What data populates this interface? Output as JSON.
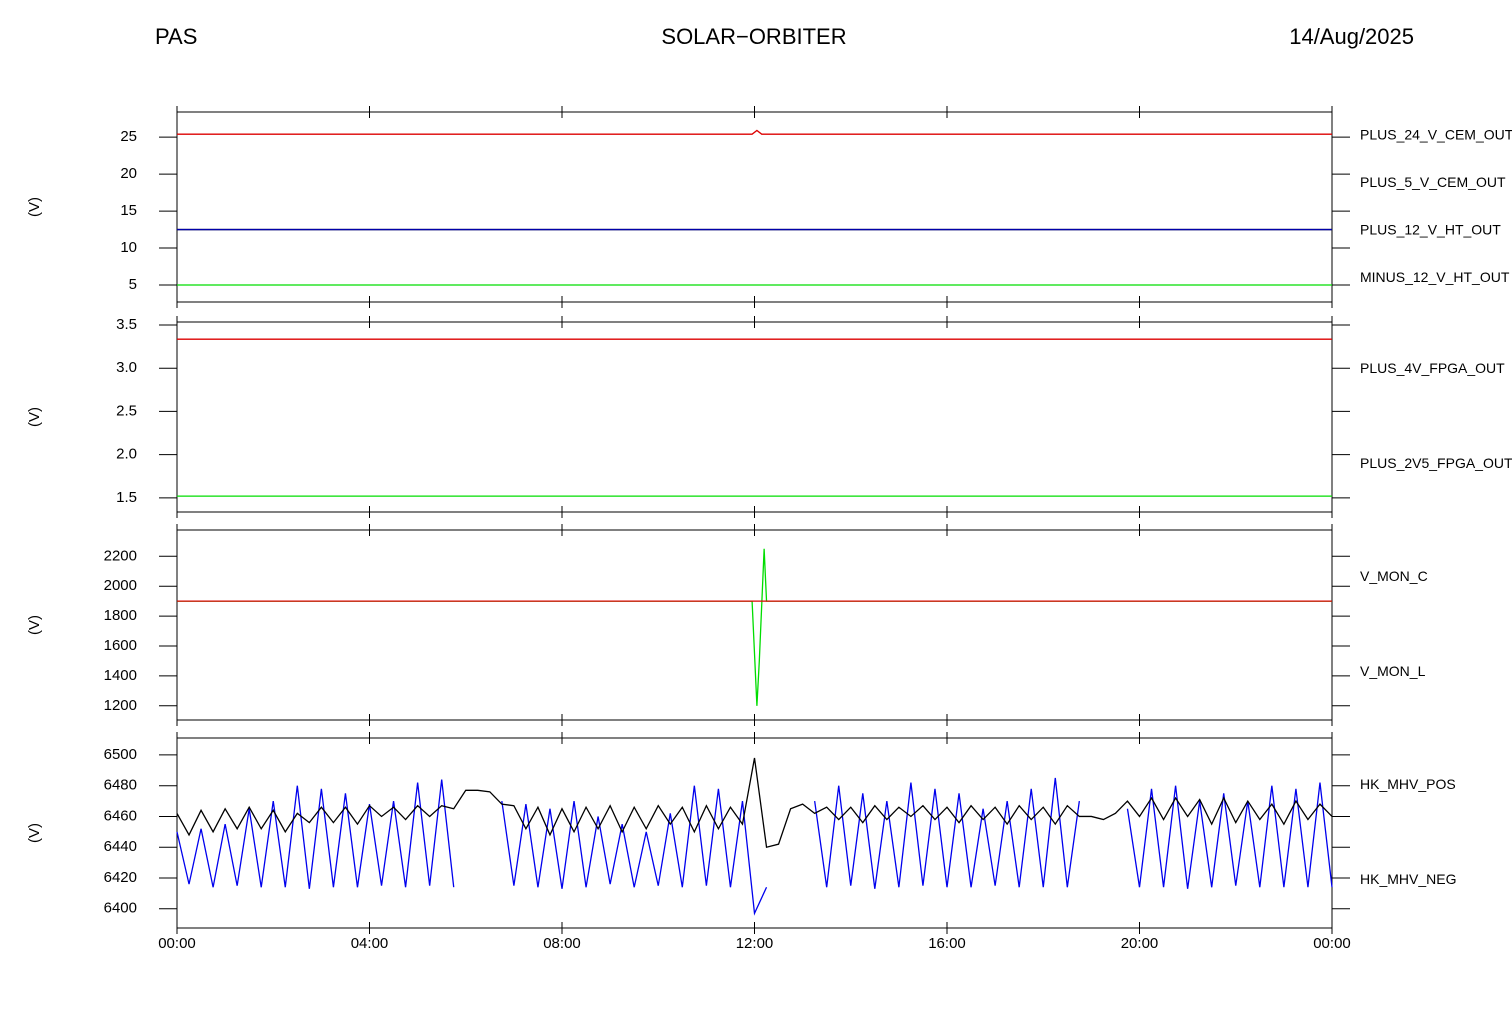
{
  "header": {
    "left": "PAS",
    "center": "SOLAR−ORBITER",
    "right": "14/Aug/2025"
  },
  "chart_data": [
    {
      "type": "line",
      "ylabel": "(V)",
      "xlim": [
        0,
        24
      ],
      "ylim": [
        2.7,
        28.4
      ],
      "yticks": [
        5,
        10,
        15,
        20,
        25
      ],
      "x": [
        0,
        11.95,
        12.05,
        12.15,
        12.3,
        24
      ],
      "series": [
        {
          "name": "PLUS_24_V_CEM_OUT",
          "color": "#dd0000",
          "values": [
            25.4,
            25.4,
            25.9,
            25.4,
            25.4,
            25.4
          ]
        },
        {
          "name": "PLUS_5_V_CEM_OUT",
          "color": "#00dd00",
          "values": [
            5.0,
            5.0,
            5.0,
            5.0,
            5.0,
            5.0
          ]
        },
        {
          "name": "PLUS_12_V_HT_OUT",
          "color": "#0000aa",
          "values": [
            12.5,
            12.5,
            12.5,
            12.5,
            12.5,
            12.5
          ]
        },
        {
          "name": "MINUS_12_V_HT_OUT",
          "color": "#000000",
          "values": [
            12.5,
            12.5,
            12.5,
            12.5,
            12.5,
            12.5
          ]
        }
      ]
    },
    {
      "type": "line",
      "ylabel": "(V)",
      "xlim": [
        0,
        24
      ],
      "ylim": [
        1.336,
        3.535
      ],
      "yticks": [
        1.5,
        {
          "value": 2,
          "label": "2.0"
        },
        2.5,
        {
          "value": 3,
          "label": "3.0"
        },
        3.5
      ],
      "x": [
        0,
        24
      ],
      "series": [
        {
          "name": "PLUS_4V_FPGA_OUT",
          "color": "#dd0000",
          "values": [
            3.336,
            3.336
          ]
        },
        {
          "name": "PLUS_2V5_FPGA_OUT",
          "color": "#00dd00",
          "values": [
            1.52,
            1.52
          ]
        }
      ]
    },
    {
      "type": "line",
      "ylabel": "(V)",
      "xlim": [
        0,
        24
      ],
      "ylim": [
        1105,
        2376
      ],
      "yticks": [
        1200,
        1400,
        1600,
        1800,
        2000,
        2200
      ],
      "x": [
        0,
        11.95,
        12.05,
        12.1,
        12.2,
        12.25,
        24
      ],
      "series": [
        {
          "name": "V_MON_C",
          "color": "#dd0000",
          "values": [
            1900,
            1900,
            1900,
            1900,
            1900,
            1900,
            1900
          ]
        },
        {
          "name": "V_MON_L",
          "color": "#00dd00",
          "values": [
            1900,
            1900,
            1200,
            1500,
            2250,
            1900,
            1900
          ]
        }
      ]
    },
    {
      "type": "line",
      "ylabel": "(V)",
      "xlim": [
        0,
        24
      ],
      "ylim": [
        6387.5,
        6511
      ],
      "yticks": [
        6400,
        6420,
        6440,
        6460,
        6480,
        6500
      ],
      "xticks": [
        {
          "value": 0,
          "label": "00:00"
        },
        {
          "value": 4,
          "label": "04:00"
        },
        {
          "value": 8,
          "label": "08:00"
        },
        {
          "value": 12,
          "label": "12:00"
        },
        {
          "value": 16,
          "label": "16:00"
        },
        {
          "value": 20,
          "label": "20:00"
        },
        {
          "value": 24,
          "label": "00:00"
        }
      ],
      "x": [
        0,
        0.25,
        0.5,
        0.75,
        1,
        1.25,
        1.5,
        1.75,
        2,
        2.25,
        2.5,
        2.75,
        3,
        3.25,
        3.5,
        3.75,
        4,
        4.25,
        4.5,
        4.75,
        5,
        5.25,
        5.5,
        5.75,
        6,
        6.25,
        6.5,
        6.75,
        7,
        7.25,
        7.5,
        7.75,
        8,
        8.25,
        8.5,
        8.75,
        9,
        9.25,
        9.5,
        9.75,
        10,
        10.25,
        10.5,
        10.75,
        11,
        11.25,
        11.5,
        11.75,
        12,
        12.25,
        12.5,
        12.75,
        13,
        13.25,
        13.5,
        13.75,
        14,
        14.25,
        14.5,
        14.75,
        15,
        15.25,
        15.5,
        15.75,
        16,
        16.25,
        16.5,
        16.75,
        17,
        17.25,
        17.5,
        17.75,
        18,
        18.25,
        18.5,
        18.75,
        19,
        19.25,
        19.5,
        19.75,
        20,
        20.25,
        20.5,
        20.75,
        21,
        21.25,
        21.5,
        21.75,
        22,
        22.25,
        22.5,
        22.75,
        23,
        23.25,
        23.5,
        23.75,
        24
      ],
      "series": [
        {
          "name": "HK_MHV_POS",
          "color": "#000000",
          "values": [
            6462,
            6448,
            6464,
            6450,
            6465,
            6452,
            6466,
            6452,
            6464,
            6450,
            6462,
            6456,
            6466,
            6456,
            6466,
            6455,
            6467,
            6460,
            6466,
            6458,
            6467,
            6460,
            6467,
            6465,
            6477,
            6477,
            6476,
            6468,
            6467,
            6452,
            6466,
            6448,
            6465,
            6450,
            6466,
            6452,
            6467,
            6450,
            6466,
            6452,
            6467,
            6455,
            6466,
            6450,
            6467,
            6452,
            6466,
            6455,
            6498,
            6440,
            6442,
            6465,
            6468,
            6462,
            6466,
            6458,
            6466,
            6456,
            6467,
            6458,
            6466,
            6460,
            6467,
            6458,
            6466,
            6456,
            6467,
            6458,
            6466,
            6455,
            6467,
            6458,
            6466,
            6455,
            6467,
            6460,
            6460,
            6458,
            6462,
            6470,
            6460,
            6472,
            6458,
            6472,
            6460,
            6471,
            6455,
            6472,
            6456,
            6470,
            6458,
            6468,
            6455,
            6470,
            6458,
            6468,
            6460
          ]
        },
        {
          "name": "HK_MHV_NEG",
          "color": "#0000ee",
          "values": [
            6450,
            6416,
            6452,
            6414,
            6455,
            6415,
            6465,
            6414,
            6470,
            6414,
            6480,
            6413,
            6478,
            6414,
            6475,
            6414,
            6468,
            6415,
            6470,
            6414,
            6482,
            6415,
            6484,
            6414,
            null,
            null,
            null,
            6470,
            6415,
            6468,
            6414,
            6465,
            6413,
            6470,
            6414,
            6460,
            6416,
            6455,
            6414,
            6450,
            6415,
            6462,
            6414,
            6480,
            6415,
            6478,
            6414,
            6470,
            6397,
            6414,
            null,
            null,
            null,
            6470,
            6414,
            6480,
            6415,
            6475,
            6413,
            6470,
            6414,
            6482,
            6415,
            6478,
            6414,
            6475,
            6414,
            6465,
            6415,
            6470,
            6414,
            6478,
            6414,
            6485,
            6414,
            6470,
            null,
            null,
            null,
            6465,
            6414,
            6478,
            6414,
            6480,
            6413,
            6470,
            6414,
            6475,
            6415,
            6470,
            6414,
            6480,
            6414,
            6478,
            6414,
            6482,
            6414
          ]
        }
      ]
    }
  ]
}
